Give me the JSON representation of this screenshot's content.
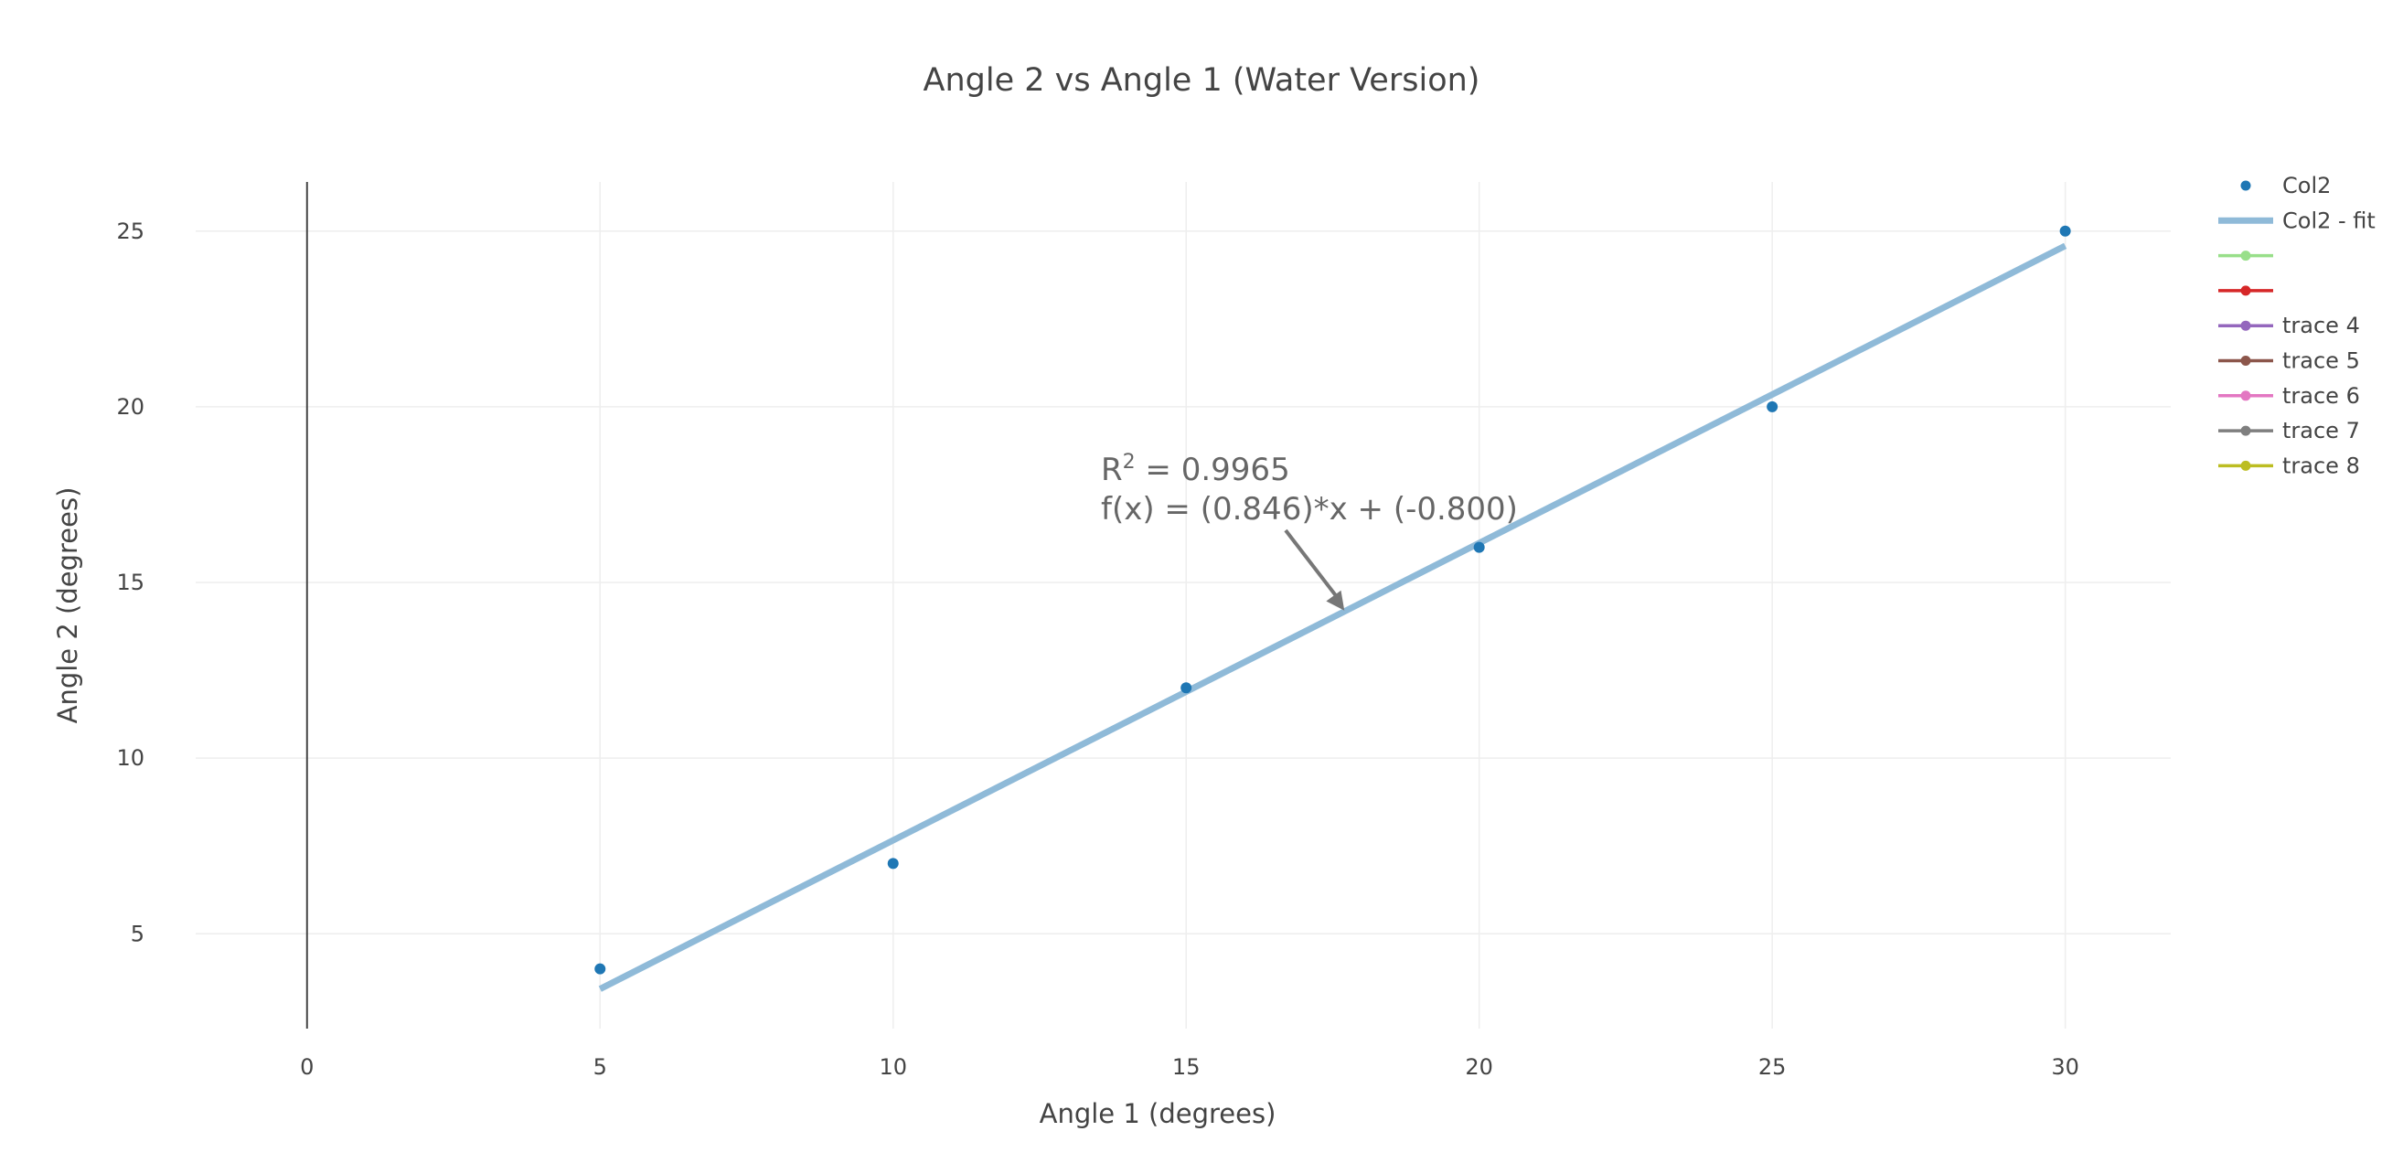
{
  "chart_data": {
    "type": "scatter",
    "title": "Angle 2 vs Angle 1 (Water Version)",
    "xlabel": "Angle 1 (degrees)",
    "ylabel": "Angle 2 (degrees)",
    "xlim": [
      -1.9,
      31.8
    ],
    "ylim": [
      2.3,
      26.4
    ],
    "xticks": [
      0,
      5,
      10,
      15,
      20,
      25,
      30
    ],
    "yticks": [
      5,
      10,
      15,
      20,
      25
    ],
    "grid": true,
    "legend_position": "top-right",
    "series": [
      {
        "name": "Col2",
        "mode": "markers",
        "color": "#1f77b4",
        "x": [
          5,
          10,
          15,
          20,
          25,
          30
        ],
        "y": [
          4,
          7,
          12,
          16,
          20,
          25
        ]
      },
      {
        "name": "Col2 - fit",
        "mode": "line",
        "color": "#8fbad8",
        "x": [
          5,
          30
        ],
        "y": [
          3.43,
          24.58
        ]
      }
    ],
    "legend": [
      {
        "label": "Col2",
        "style": "marker",
        "color": "#1f77b4"
      },
      {
        "label": "Col2 - fit",
        "style": "thick-line",
        "color": "#8fbad8"
      },
      {
        "label": "",
        "style": "line-marker",
        "color": "#98df8a"
      },
      {
        "label": "",
        "style": "line-marker",
        "color": "#d62728"
      },
      {
        "label": "trace 4",
        "style": "line-marker",
        "color": "#9467bd"
      },
      {
        "label": "trace 5",
        "style": "line-marker",
        "color": "#8c564b"
      },
      {
        "label": "trace 6",
        "style": "line-marker",
        "color": "#e377c2"
      },
      {
        "label": "trace 7",
        "style": "line-marker",
        "color": "#7f7f7f"
      },
      {
        "label": "trace 8",
        "style": "line-marker",
        "color": "#bcbd22"
      }
    ],
    "annotation": {
      "r2_prefix": "R",
      "r2_sup": "2",
      "r2_value": " = 0.9965",
      "equation": "f(x) = (0.846)*x + (-0.800)",
      "arrow_target": {
        "x": 17.7,
        "y": 14.2
      }
    }
  }
}
